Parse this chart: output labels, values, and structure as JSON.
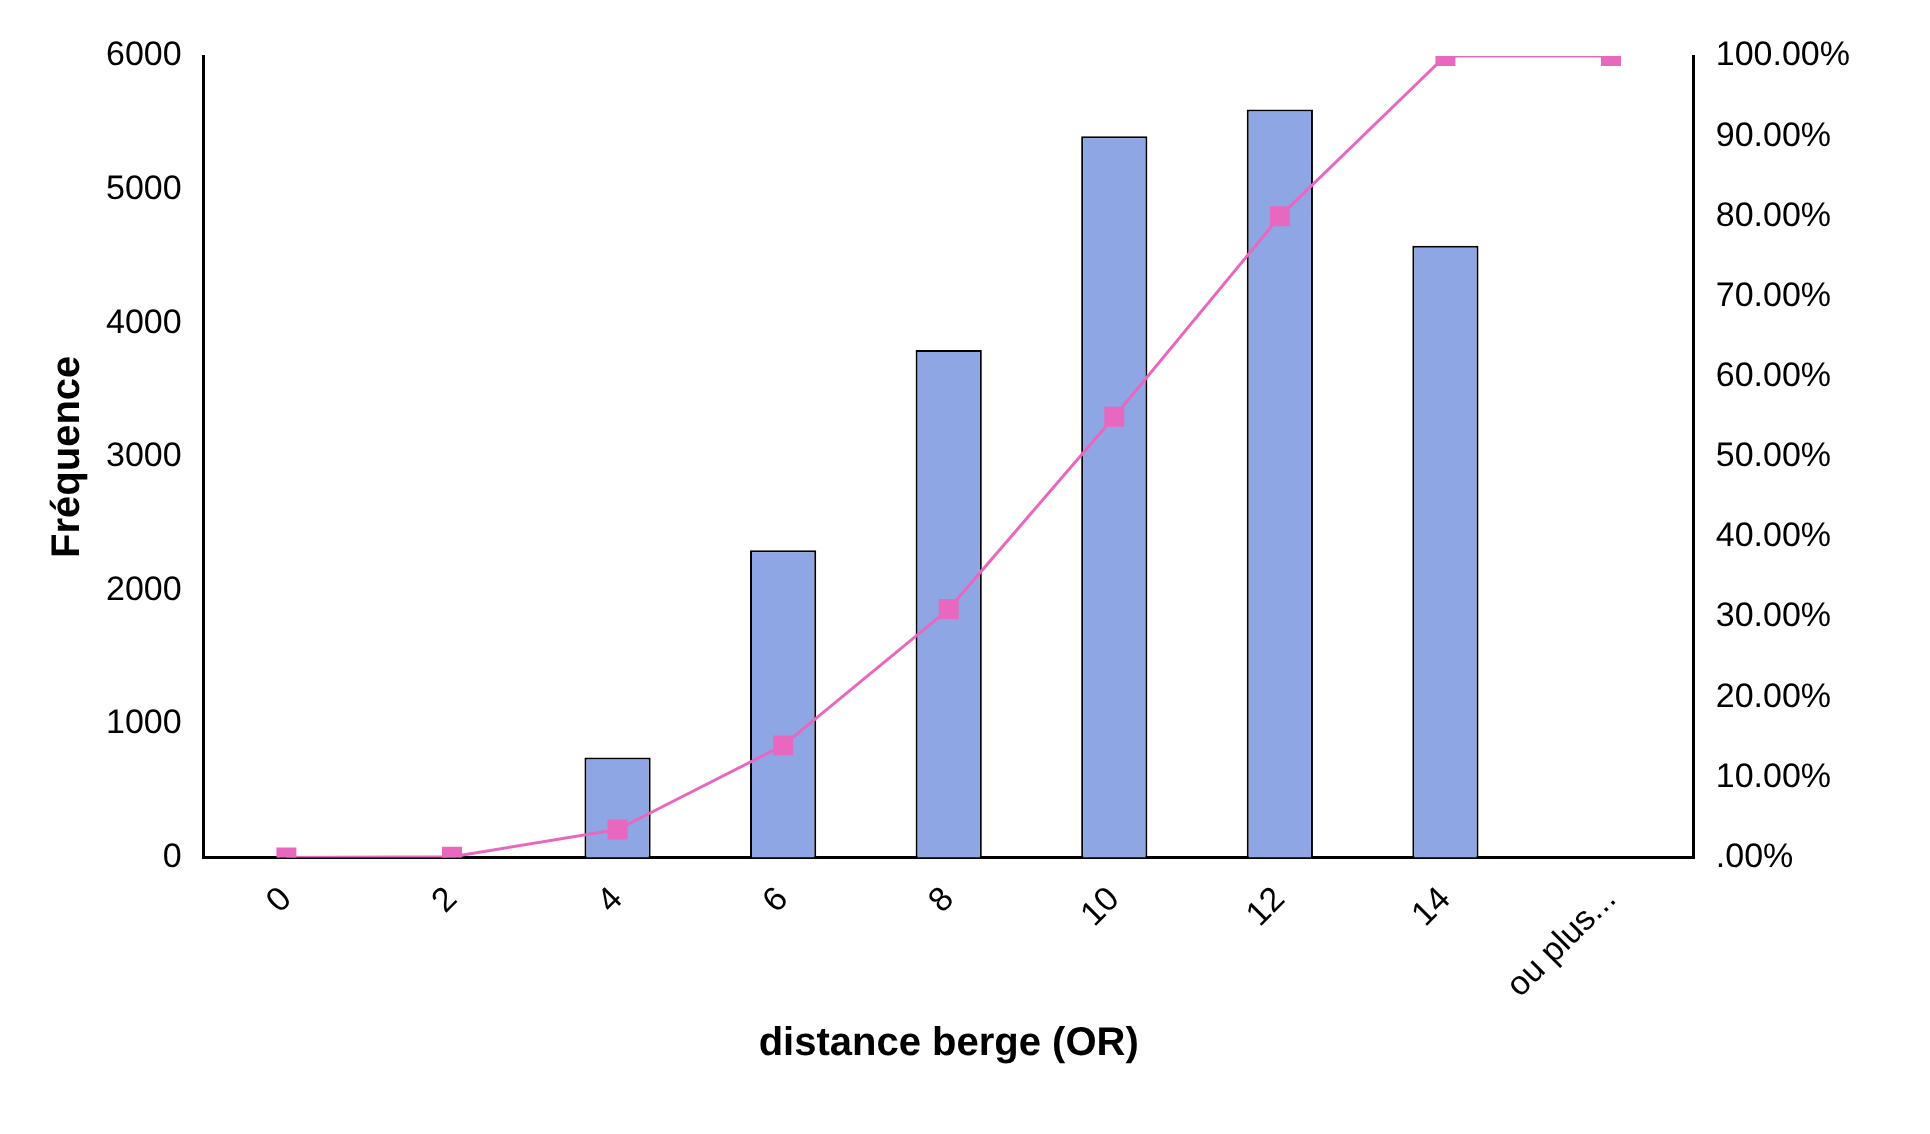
{
  "chart_data": {
    "type": "bar",
    "xlabel": "distance berge (OR)",
    "ylabel": "Fréquence",
    "categories": [
      "0",
      "2",
      "4",
      "6",
      "8",
      "10",
      "12",
      "14",
      "ou plus..."
    ],
    "series": [
      {
        "color": "#8ea6e4",
        "values": [
          0,
          null,
          750,
          2300,
          3800,
          5400,
          5600,
          4580,
          0
        ]
      },
      {
        "type": "line",
        "axis": "y2",
        "color": "#e868c0",
        "values": [
          0,
          0.1,
          3.5,
          14,
          31,
          55,
          80,
          100,
          100
        ]
      }
    ],
    "ylim": [
      0,
      6000
    ],
    "yticks": [
      0,
      1000,
      2000,
      3000,
      4000,
      5000,
      6000
    ],
    "y2lim": [
      0,
      100
    ],
    "y2ticks": [
      {
        "value": 0,
        "label": ".00%"
      },
      {
        "value": 10,
        "label": "10.00%"
      },
      {
        "value": 20,
        "label": "20.00%"
      },
      {
        "value": 30,
        "label": "30.00%"
      },
      {
        "value": 40,
        "label": "40.00%"
      },
      {
        "value": 50,
        "label": "50.00%"
      },
      {
        "value": 60,
        "label": "60.00%"
      },
      {
        "value": 70,
        "label": "70.00%"
      },
      {
        "value": 80,
        "label": "80.00%"
      },
      {
        "value": 90,
        "label": "90.00%"
      },
      {
        "value": 100,
        "label": "100.00%"
      }
    ],
    "grid": false,
    "legend": false,
    "marker": "square",
    "line_style": "solid"
  }
}
